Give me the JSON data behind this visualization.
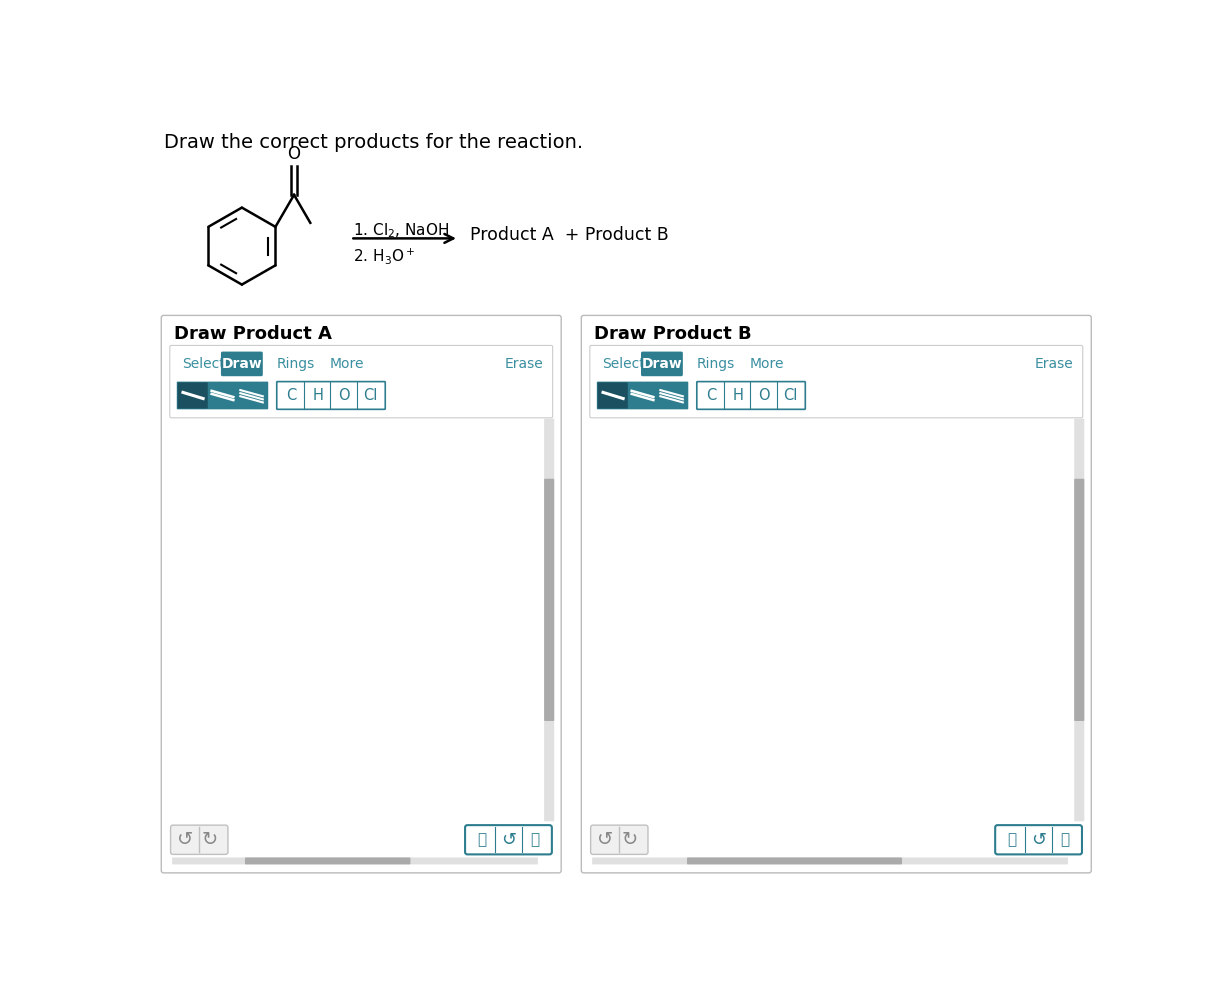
{
  "title": "Draw the correct products for the reaction.",
  "title_fontsize": 14,
  "background_color": "#ffffff",
  "teal_color": "#3a8fa0",
  "teal_dark": "#2d7d8e",
  "gray_border": "#cccccc",
  "gray_light": "#eeeeee",
  "gray_scrollbar": "#aaaaaa",
  "reaction_text1": "1. Cl$_2$, NaOH",
  "reaction_text2": "2. H$_3$O$^+$",
  "product_text": "Product A  + Product B",
  "panel_a_title": "Draw Product A",
  "panel_b_title": "Draw Product B"
}
